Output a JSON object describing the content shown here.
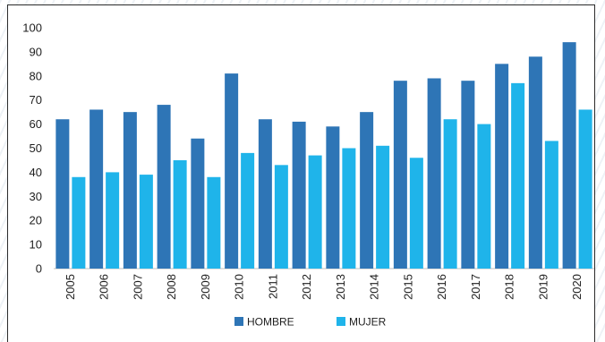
{
  "chart_data": {
    "type": "bar",
    "title": "",
    "xlabel": "",
    "ylabel": "",
    "ylim": [
      0,
      100
    ],
    "yticks": [
      0,
      10,
      20,
      30,
      40,
      50,
      60,
      70,
      80,
      90,
      100
    ],
    "categories": [
      "2005",
      "2006",
      "2007",
      "2008",
      "2009",
      "2010",
      "2011",
      "2012",
      "2013",
      "2014",
      "2015",
      "2016",
      "2017",
      "2018",
      "2019",
      "2020"
    ],
    "series": [
      {
        "name": "HOMBRE",
        "color": "#2e75b6",
        "values": [
          62,
          66,
          65,
          68,
          54,
          81,
          62,
          61,
          59,
          65,
          78,
          79,
          78,
          85,
          88,
          94
        ]
      },
      {
        "name": "MUJER",
        "color": "#1fb4ea",
        "values": [
          38,
          40,
          39,
          45,
          38,
          48,
          43,
          47,
          50,
          51,
          46,
          62,
          60,
          77,
          53,
          66
        ]
      }
    ],
    "grid": false,
    "legend_position": "bottom"
  }
}
